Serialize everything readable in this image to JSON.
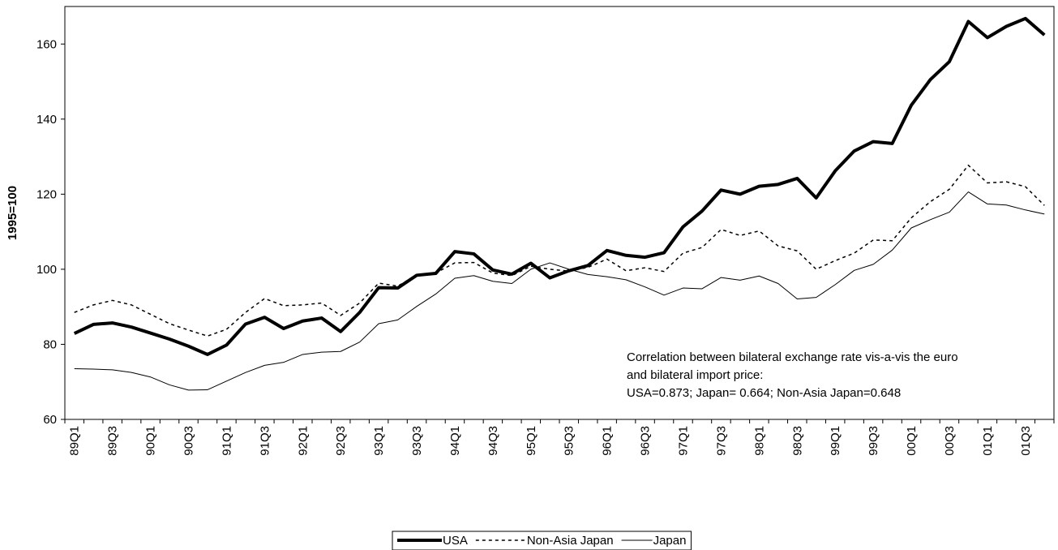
{
  "chart_data": {
    "type": "line",
    "y_label": "1995=100",
    "annotation": [
      "Correlation between bilateral exchange rate vis-a-vis the euro",
      "and bilateral import price:",
      "USA=0.873; Japan= 0.664; Non-Asia Japan=0.648"
    ],
    "categories": [
      "89Q1",
      null,
      "89Q3",
      null,
      "90Q1",
      null,
      "90Q3",
      null,
      "91Q1",
      null,
      "91Q3",
      null,
      "92Q1",
      null,
      "92Q3",
      null,
      "93Q1",
      null,
      "93Q3",
      null,
      "94Q1",
      null,
      "94Q3",
      null,
      "95Q1",
      null,
      "95Q3",
      null,
      "96Q1",
      null,
      "96Q3",
      null,
      "97Q1",
      null,
      "97Q3",
      null,
      "98Q1",
      null,
      "98Q3",
      null,
      "99Q1",
      null,
      "99Q3",
      null,
      "00Q1",
      null,
      "00Q3",
      null,
      "01Q1",
      null,
      "01Q3",
      null
    ],
    "ylim": [
      60,
      170
    ],
    "yticks": [
      60,
      80,
      100,
      120,
      140,
      160
    ],
    "series": [
      {
        "name": "USA",
        "color": "#000000",
        "width": 4,
        "dash": "solid",
        "values": [
          82.9,
          85.3,
          85.7,
          84.6,
          83.0,
          81.4,
          79.5,
          77.3,
          79.8,
          85.4,
          87.2,
          84.2,
          86.2,
          87.0,
          83.4,
          88.5,
          95.1,
          95.0,
          98.4,
          98.9,
          104.7,
          104.1,
          99.8,
          98.7,
          101.6,
          97.7,
          99.6,
          101.0,
          105.0,
          103.7,
          103.2,
          104.4,
          111.3,
          115.5,
          121.1,
          120.0,
          122.1,
          122.6,
          124.2,
          119.0,
          126.2,
          131.5,
          134.0,
          133.5,
          143.7,
          150.5,
          155.3,
          166.0,
          161.7,
          164.7,
          166.8,
          162.4
        ]
      },
      {
        "name": "Non-Asia Japan",
        "color": "#000000",
        "width": 1.5,
        "dash": "dashed",
        "values": [
          88.5,
          90.5,
          91.7,
          90.5,
          88.0,
          85.5,
          83.8,
          82.2,
          84.0,
          88.5,
          92.2,
          90.3,
          90.5,
          91.0,
          87.7,
          91.0,
          96.3,
          95.5,
          98.5,
          99.0,
          101.7,
          101.8,
          99.0,
          98.3,
          100.8,
          100.0,
          99.5,
          100.5,
          102.7,
          99.6,
          100.4,
          99.4,
          104.3,
          105.8,
          110.6,
          109.0,
          110.2,
          106.2,
          104.9,
          100.0,
          102.3,
          104.3,
          107.8,
          107.6,
          113.7,
          118.0,
          121.3,
          127.7,
          123.0,
          123.3,
          122.0,
          117.0
        ]
      },
      {
        "name": "Japan",
        "color": "#000000",
        "width": 1,
        "dash": "solid",
        "values": [
          73.5,
          73.4,
          73.2,
          72.5,
          71.3,
          69.2,
          67.8,
          67.9,
          70.2,
          72.5,
          74.4,
          75.2,
          77.3,
          77.9,
          78.1,
          80.6,
          85.5,
          86.5,
          90.1,
          93.4,
          97.6,
          98.3,
          96.8,
          96.2,
          100.0,
          101.7,
          100.0,
          98.6,
          98.0,
          97.2,
          95.3,
          93.1,
          95.0,
          94.8,
          97.8,
          97.1,
          98.2,
          96.2,
          92.1,
          92.5,
          95.9,
          99.7,
          101.3,
          105.1,
          111.0,
          113.2,
          115.2,
          120.6,
          117.4,
          117.1,
          115.8,
          114.7
        ]
      }
    ],
    "legend": "bottom"
  }
}
